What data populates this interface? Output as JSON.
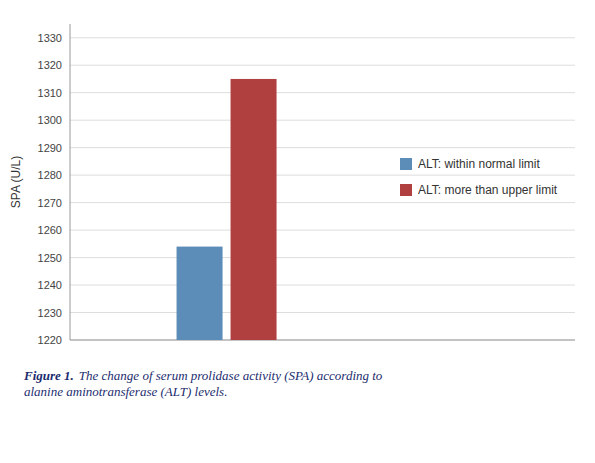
{
  "chart_data": {
    "type": "bar",
    "categories": [
      null
    ],
    "series": [
      {
        "name": "ALT: within normal limit",
        "color": "#5b8db8",
        "values": [
          1254
        ]
      },
      {
        "name": "ALT: more than upper limit",
        "color": "#b04040",
        "values": [
          1315
        ]
      }
    ],
    "y_label": "SPA (U/L)",
    "ylim": [
      1220,
      1335
    ],
    "yticks": [
      1220,
      1230,
      1240,
      1250,
      1260,
      1270,
      1280,
      1290,
      1300,
      1310,
      1320,
      1330
    ],
    "grid": true,
    "legend": "right",
    "tick_labels": "y",
    "annotations": [
      {
        "text": "Figure 1.",
        "color": "#1c2d6e"
      },
      {
        "text": "The change of serum prolidase activity (SPA) according to\nalanine aminotransferase (ALT) levels.",
        "color": "#1c2d6e"
      }
    ]
  }
}
